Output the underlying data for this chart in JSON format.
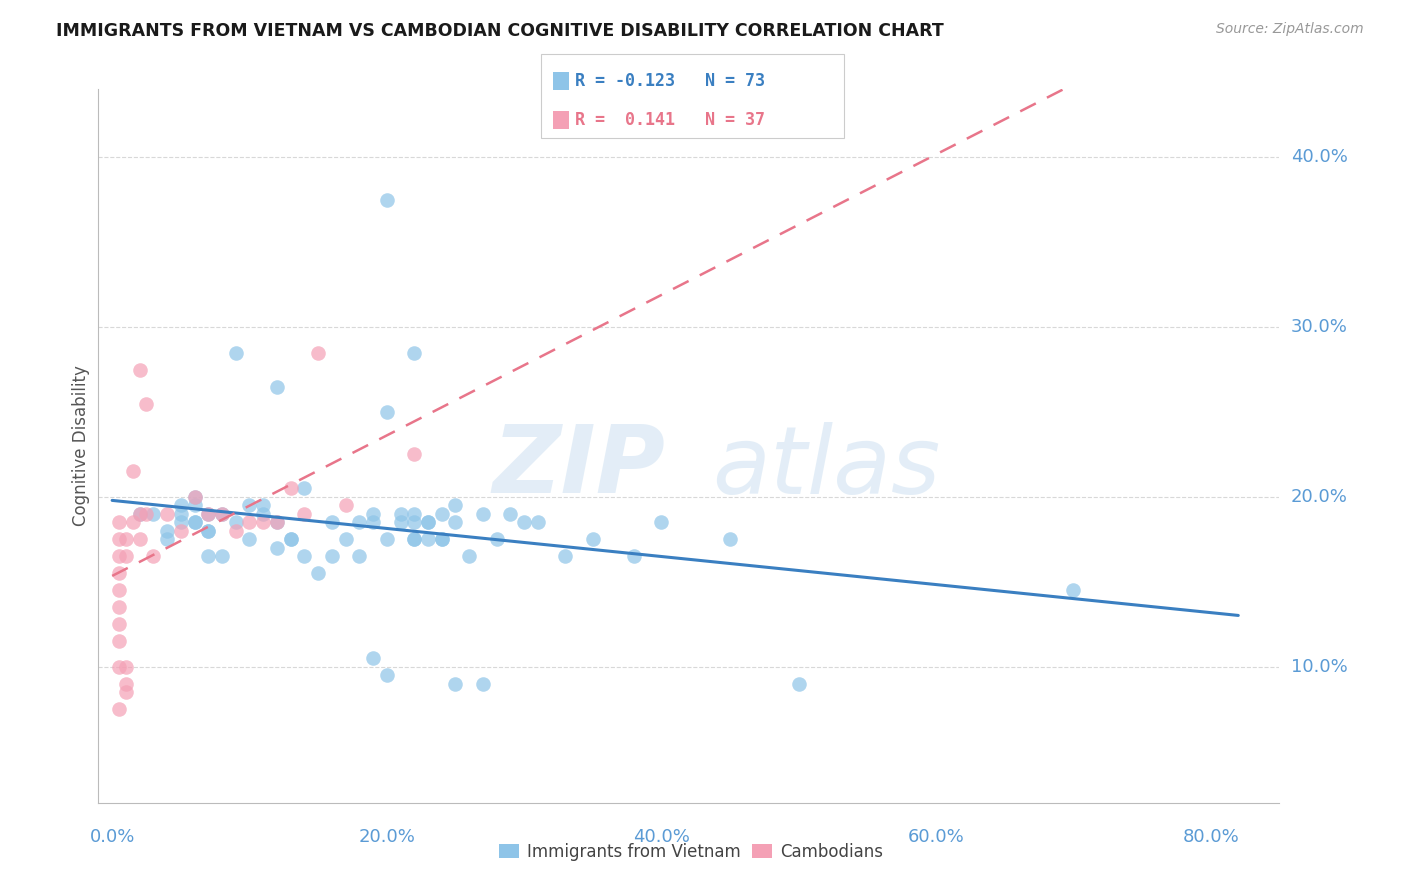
{
  "title": "IMMIGRANTS FROM VIETNAM VS CAMBODIAN COGNITIVE DISABILITY CORRELATION CHART",
  "source": "Source: ZipAtlas.com",
  "ylabel": "Cognitive Disability",
  "legend_label1": "Immigrants from Vietnam",
  "legend_label2": "Cambodians",
  "ytick_labels": [
    "10.0%",
    "20.0%",
    "30.0%",
    "40.0%"
  ],
  "ytick_values": [
    0.1,
    0.2,
    0.3,
    0.4
  ],
  "xtick_labels": [
    "0.0%",
    "20.0%",
    "40.0%",
    "60.0%",
    "80.0%"
  ],
  "xtick_values": [
    0.0,
    0.2,
    0.4,
    0.6,
    0.8
  ],
  "xlim": [
    -0.01,
    0.85
  ],
  "ylim": [
    0.02,
    0.44
  ],
  "color_blue": "#8ec4e8",
  "color_pink": "#f4a0b5",
  "line_blue": "#3a7fc1",
  "line_pink": "#e8758a",
  "watermark_zip": "ZIP",
  "watermark_atlas": "atlas",
  "title_color": "#222222",
  "axis_color": "#5b9bd5",
  "grid_color": "#d8d8d8",
  "vietnam_x": [
    0.02,
    0.03,
    0.04,
    0.04,
    0.05,
    0.05,
    0.05,
    0.06,
    0.06,
    0.06,
    0.06,
    0.07,
    0.07,
    0.07,
    0.07,
    0.08,
    0.08,
    0.09,
    0.09,
    0.1,
    0.1,
    0.11,
    0.11,
    0.12,
    0.12,
    0.12,
    0.13,
    0.13,
    0.14,
    0.14,
    0.15,
    0.16,
    0.16,
    0.17,
    0.18,
    0.18,
    0.19,
    0.19,
    0.2,
    0.2,
    0.21,
    0.22,
    0.22,
    0.23,
    0.23,
    0.24,
    0.25,
    0.26,
    0.27,
    0.19,
    0.2,
    0.21,
    0.22,
    0.23,
    0.24,
    0.25,
    0.27,
    0.28,
    0.29,
    0.3,
    0.31,
    0.33,
    0.35,
    0.38,
    0.4,
    0.45,
    0.5,
    0.2,
    0.22,
    0.24,
    0.25,
    0.7,
    0.22
  ],
  "vietnam_y": [
    0.19,
    0.19,
    0.18,
    0.175,
    0.19,
    0.195,
    0.185,
    0.2,
    0.185,
    0.195,
    0.185,
    0.165,
    0.18,
    0.18,
    0.19,
    0.19,
    0.165,
    0.285,
    0.185,
    0.195,
    0.175,
    0.19,
    0.195,
    0.265,
    0.185,
    0.17,
    0.175,
    0.175,
    0.205,
    0.165,
    0.155,
    0.165,
    0.185,
    0.175,
    0.185,
    0.165,
    0.105,
    0.185,
    0.25,
    0.175,
    0.19,
    0.175,
    0.185,
    0.175,
    0.185,
    0.175,
    0.185,
    0.165,
    0.09,
    0.19,
    0.095,
    0.185,
    0.175,
    0.185,
    0.175,
    0.09,
    0.19,
    0.175,
    0.19,
    0.185,
    0.185,
    0.165,
    0.175,
    0.165,
    0.185,
    0.175,
    0.09,
    0.375,
    0.285,
    0.19,
    0.195,
    0.145,
    0.19
  ],
  "cambodian_x": [
    0.005,
    0.005,
    0.005,
    0.005,
    0.005,
    0.005,
    0.005,
    0.005,
    0.005,
    0.005,
    0.01,
    0.01,
    0.01,
    0.01,
    0.01,
    0.015,
    0.015,
    0.02,
    0.02,
    0.02,
    0.025,
    0.025,
    0.03,
    0.04,
    0.05,
    0.06,
    0.07,
    0.08,
    0.09,
    0.1,
    0.11,
    0.12,
    0.13,
    0.14,
    0.15,
    0.17,
    0.22
  ],
  "cambodian_y": [
    0.185,
    0.175,
    0.165,
    0.155,
    0.145,
    0.135,
    0.125,
    0.115,
    0.1,
    0.075,
    0.1,
    0.09,
    0.085,
    0.165,
    0.175,
    0.215,
    0.185,
    0.275,
    0.175,
    0.19,
    0.255,
    0.19,
    0.165,
    0.19,
    0.18,
    0.2,
    0.19,
    0.19,
    0.18,
    0.185,
    0.185,
    0.185,
    0.205,
    0.19,
    0.285,
    0.195,
    0.225
  ]
}
